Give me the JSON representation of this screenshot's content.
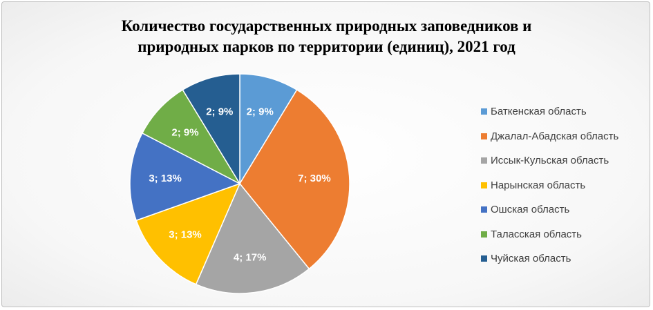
{
  "chart_data": {
    "type": "pie",
    "title": "Количество государственных природных заповедников и природных парков по территории (единиц), 2021 год",
    "title_lines": [
      "Количество государственных природных заповедников и",
      "природных парков по территории (единиц), 2021 год"
    ],
    "legend_position": "right",
    "slices": [
      {
        "label": "Баткенская область",
        "value": 2,
        "data_label": "2; 9%",
        "color": "#5b9bd5"
      },
      {
        "label": "Джалал-Абадская область",
        "value": 7,
        "data_label": "7; 30%",
        "color": "#ed7d31"
      },
      {
        "label": "Иссык-Кульская область",
        "value": 4,
        "data_label": "4; 17%",
        "color": "#a5a5a5"
      },
      {
        "label": "Нарынская область",
        "value": 3,
        "data_label": "3; 13%",
        "color": "#ffc000"
      },
      {
        "label": "Ошская область",
        "value": 3,
        "data_label": "3; 13%",
        "color": "#4472c4"
      },
      {
        "label": "Таласская область",
        "value": 2,
        "data_label": "2; 9%",
        "color": "#70ad47"
      },
      {
        "label": "Чуйская область",
        "value": 2,
        "data_label": "2; 9%",
        "color": "#255e91"
      }
    ]
  }
}
